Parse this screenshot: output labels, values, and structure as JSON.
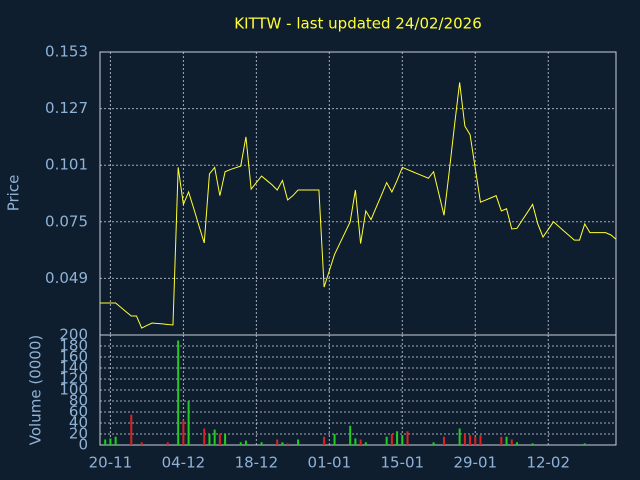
{
  "chart_data": [
    {
      "type": "line",
      "title": "KITTW - last updated 24/02/2026",
      "ylabel": "Price",
      "color": "#ffff33",
      "ylim": [
        0.023,
        0.153
      ],
      "yticks": [
        0.049,
        0.075,
        0.101,
        0.127,
        0.153
      ],
      "grid": true,
      "values": [
        0.0377,
        0.0377,
        0.0377,
        0.0377,
        0.0357,
        0.0337,
        0.0317,
        0.0317,
        0.0262,
        0.0274,
        0.0285,
        0.0283,
        0.0281,
        0.0278,
        0.0276,
        0.1,
        0.083,
        0.0887,
        0.081,
        0.073,
        0.0653,
        0.097,
        0.1,
        0.087,
        0.098,
        0.099,
        0.0998,
        0.1006,
        0.114,
        0.09,
        0.093,
        0.096,
        0.094,
        0.092,
        0.0896,
        0.094,
        0.085,
        0.087,
        0.0896,
        0.0896,
        0.0896,
        0.0896,
        0.0896,
        0.045,
        0.0525,
        0.06,
        0.065,
        0.07,
        0.075,
        0.0896,
        0.065,
        0.08,
        0.076,
        0.0817,
        0.0873,
        0.093,
        0.0887,
        0.094,
        0.1,
        0.099,
        0.098,
        0.097,
        0.096,
        0.095,
        0.098,
        0.088,
        0.078,
        0.098,
        0.119,
        0.139,
        0.119,
        0.115,
        0.0995,
        0.084,
        0.085,
        0.086,
        0.087,
        0.08,
        0.081,
        0.0717,
        0.072,
        0.0757,
        0.0793,
        0.083,
        0.074,
        0.068,
        0.0715,
        0.075,
        0.0729,
        0.0708,
        0.0687,
        0.0666,
        0.0666,
        0.074,
        0.07,
        0.07,
        0.07,
        0.07,
        0.069,
        0.067
      ]
    },
    {
      "type": "bar",
      "ylabel": "Volume (0000)",
      "up_color": "#22cc22",
      "down_color": "#dd2222",
      "ylim": [
        0,
        200
      ],
      "yticks": [
        0,
        20,
        40,
        60,
        80,
        100,
        120,
        140,
        160,
        180,
        200
      ],
      "grid": true,
      "categories": [
        null,
        null,
        "20-11",
        null,
        null,
        null,
        null,
        null,
        null,
        null,
        null,
        null,
        null,
        null,
        null,
        null,
        "04-12",
        null,
        null,
        null,
        null,
        null,
        null,
        null,
        null,
        null,
        null,
        null,
        null,
        null,
        "18-12",
        null,
        null,
        null,
        null,
        null,
        null,
        null,
        null,
        null,
        null,
        null,
        null,
        null,
        "01-01",
        null,
        null,
        null,
        null,
        null,
        null,
        null,
        null,
        null,
        null,
        null,
        null,
        null,
        "15-01",
        null,
        null,
        null,
        null,
        null,
        null,
        null,
        null,
        null,
        null,
        null,
        null,
        null,
        "29-01",
        null,
        null,
        null,
        null,
        null,
        null,
        null,
        null,
        null,
        null,
        null,
        null,
        null,
        "12-02",
        null,
        null,
        null,
        null,
        null,
        null,
        null,
        null,
        null,
        null,
        null,
        null,
        null
      ],
      "values": [
        0,
        10,
        12,
        15,
        0,
        0,
        55,
        0,
        5,
        0,
        0,
        0,
        0,
        5,
        0,
        190,
        45,
        80,
        0,
        0,
        30,
        20,
        28,
        20,
        20,
        0,
        0,
        5,
        8,
        0,
        0,
        5,
        0,
        0,
        10,
        5,
        3,
        0,
        10,
        0,
        0,
        0,
        0,
        15,
        0,
        20,
        0,
        0,
        35,
        12,
        10,
        5,
        0,
        0,
        0,
        15,
        20,
        25,
        18,
        25,
        0,
        0,
        0,
        0,
        5,
        0,
        15,
        0,
        0,
        30,
        20,
        18,
        15,
        18,
        0,
        0,
        0,
        15,
        15,
        10,
        5,
        0,
        0,
        3,
        0,
        0,
        0,
        0,
        0,
        0,
        0,
        0,
        0,
        3,
        0,
        0,
        0,
        0,
        0,
        0
      ]
    }
  ]
}
